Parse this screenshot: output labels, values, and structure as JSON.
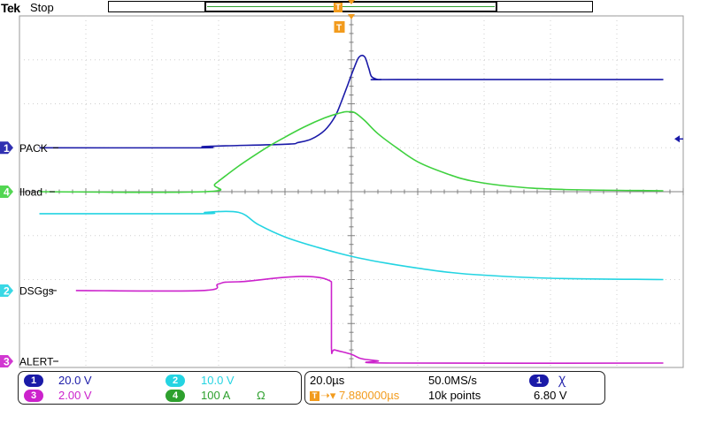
{
  "header": {
    "brand": "Tek",
    "acq_state": "Stop",
    "trigger_marker": "T"
  },
  "colors": {
    "ch1": "#1a1aa8",
    "ch2": "#24d4e2",
    "ch3": "#cc22cc",
    "ch4": "#3fd13f",
    "trigger": "#f29b1d",
    "grid": "#cfcfcf",
    "center_axis": "#808080"
  },
  "channels": [
    {
      "id": "1",
      "label": "PACK",
      "color": "#1a1aa8"
    },
    {
      "id": "4",
      "label": "Iload",
      "color": "#3fd13f"
    },
    {
      "id": "2",
      "label": "DSGgs",
      "color": "#24d4e2"
    },
    {
      "id": "3",
      "label": "ALERT",
      "color": "#cc22cc"
    }
  ],
  "vertical_settings": {
    "ch1_num": "1",
    "ch1_scale": "20.0 V",
    "ch2_num": "2",
    "ch2_scale": "10.0 V",
    "ch3_num": "3",
    "ch3_scale": "2.00 V",
    "ch4_num": "4",
    "ch4_scale": "100 A",
    "ch4_unit_symbol": "Ω"
  },
  "horizontal_settings": {
    "time_per_div": "20.0µs",
    "sample_rate": "50.0MS/s",
    "trigger_delay": "7.880000µs",
    "record_length": "10k points",
    "trigger_source": "1",
    "trigger_slope_symbol": "Ꭓ",
    "trigger_level": "6.80 V"
  },
  "chart_data": {
    "type": "line",
    "x_unit": "div",
    "x_range": [
      -5,
      5
    ],
    "y_unit": "div",
    "y_range": [
      -4,
      4
    ],
    "grid": true,
    "series": [
      {
        "name": "PACK",
        "color": "#1a1aa8",
        "x": [
          -4.7,
          -2.25,
          -2.2,
          -1.0,
          -0.8,
          -0.6,
          -0.4,
          -0.25,
          -0.15,
          -0.05,
          0.05,
          0.12,
          0.2,
          0.26,
          0.3,
          0.36,
          0.45,
          0.7,
          4.7
        ],
        "y": [
          1.0,
          1.0,
          1.03,
          1.08,
          1.12,
          1.2,
          1.4,
          1.7,
          2.05,
          2.45,
          2.85,
          3.07,
          3.07,
          2.82,
          2.63,
          2.57,
          2.55,
          2.55,
          2.55
        ]
      },
      {
        "name": "Iload",
        "color": "#3fd13f",
        "x": [
          -4.7,
          -2.2,
          -2.05,
          -1.7,
          -1.3,
          -1.0,
          -0.7,
          -0.4,
          -0.15,
          -0.05,
          0.05,
          0.2,
          0.4,
          0.7,
          1.0,
          1.4,
          1.8,
          2.4,
          3.2,
          4.7
        ],
        "y": [
          0.0,
          0.0,
          0.18,
          0.58,
          0.98,
          1.24,
          1.48,
          1.68,
          1.8,
          1.82,
          1.8,
          1.62,
          1.32,
          0.98,
          0.68,
          0.43,
          0.25,
          0.12,
          0.05,
          0.02
        ]
      },
      {
        "name": "DSGgs",
        "color": "#24d4e2",
        "x": [
          -4.7,
          -2.25,
          -2.2,
          -1.7,
          -1.4,
          -1.0,
          -0.5,
          0.0,
          0.5,
          1.0,
          1.5,
          2.0,
          3.0,
          4.7
        ],
        "y": [
          -0.5,
          -0.5,
          -0.47,
          -0.47,
          -0.75,
          -1.03,
          -1.27,
          -1.47,
          -1.62,
          -1.74,
          -1.84,
          -1.9,
          -1.97,
          -2.0
        ]
      },
      {
        "name": "ALERT",
        "color": "#cc22cc",
        "x": [
          -4.15,
          -2.25,
          -2.0,
          -1.7,
          -0.3,
          -0.3,
          -0.25,
          0.0,
          0.15,
          0.4,
          0.6,
          4.7
        ],
        "y": [
          -2.25,
          -2.25,
          -2.1,
          -2.05,
          -2.05,
          -3.55,
          -3.6,
          -3.7,
          -3.8,
          -3.85,
          -3.9,
          -3.9
        ]
      }
    ]
  }
}
